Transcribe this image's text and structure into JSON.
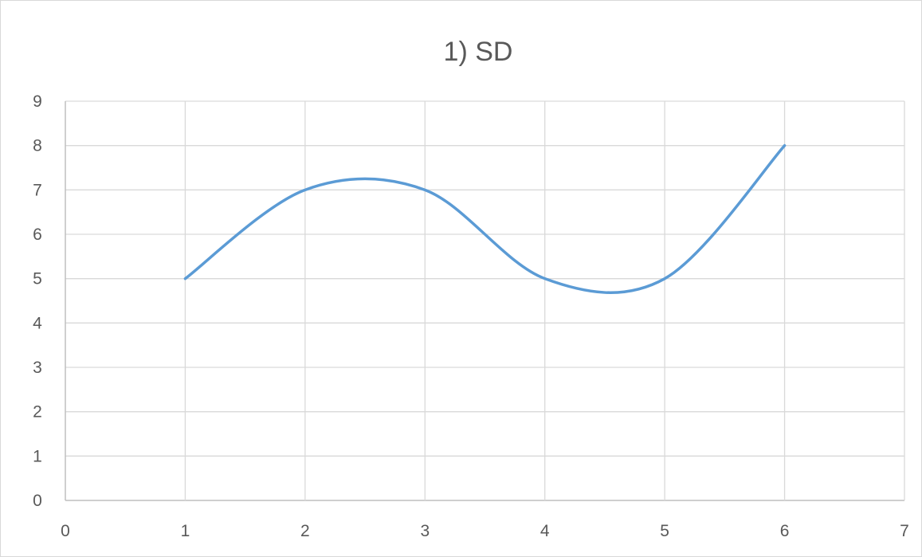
{
  "chart_data": {
    "type": "scatter",
    "title": "1) SD",
    "xlabel": "",
    "ylabel": "",
    "xlim": [
      0,
      7
    ],
    "ylim": [
      0,
      9
    ],
    "x_ticks": [
      0,
      1,
      2,
      3,
      4,
      5,
      6,
      7
    ],
    "y_ticks": [
      0,
      1,
      2,
      3,
      4,
      5,
      6,
      7,
      8,
      9
    ],
    "grid": true,
    "legend": "none",
    "smooth_lines": true,
    "series": [
      {
        "color": "#5b9bd5",
        "x": [
          1,
          2,
          3,
          4,
          5,
          6
        ],
        "y": [
          5,
          7,
          7,
          5,
          5,
          8
        ]
      }
    ]
  }
}
